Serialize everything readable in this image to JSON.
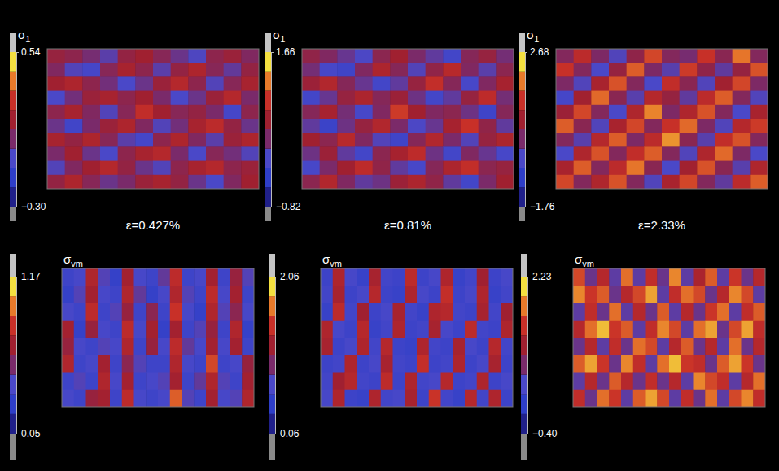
{
  "chart_data": [
    {
      "type": "heatmap",
      "title": "σ1",
      "xlabel": "ε=0.427%",
      "tick_labels": false,
      "colorbar": {
        "range": [
          -0.3,
          0.54
        ],
        "ticks": [
          {
            "value": -0.3,
            "label": "−0.30"
          },
          0.54
        ]
      },
      "cells": [
        [
          0.15,
          0.12,
          0.05,
          -0.02,
          0.14,
          0.18,
          0.1,
          0.02,
          -0.05,
          0.12,
          0.16,
          0.08
        ],
        [
          0.08,
          -0.04,
          -0.08,
          0.1,
          0.2,
          0.12,
          -0.02,
          0.14,
          0.22,
          0.1,
          0.0,
          0.14
        ],
        [
          0.18,
          0.22,
          0.12,
          0.04,
          -0.06,
          0.02,
          0.16,
          0.24,
          0.12,
          -0.04,
          0.1,
          0.2
        ],
        [
          -0.06,
          0.04,
          0.16,
          0.2,
          0.12,
          0.18,
          0.06,
          -0.06,
          0.02,
          0.16,
          0.24,
          0.06
        ],
        [
          0.12,
          0.2,
          0.08,
          -0.04,
          0.1,
          0.28,
          0.18,
          0.1,
          0.14,
          0.06,
          -0.08,
          0.12
        ],
        [
          0.02,
          -0.1,
          0.06,
          0.16,
          0.22,
          0.08,
          -0.04,
          0.04,
          0.2,
          0.26,
          0.14,
          0.02
        ],
        [
          0.2,
          0.14,
          0.22,
          0.1,
          -0.02,
          -0.08,
          0.12,
          0.22,
          0.08,
          -0.02,
          0.16,
          0.22
        ],
        [
          0.06,
          0.18,
          0.02,
          -0.06,
          0.12,
          0.2,
          0.24,
          0.06,
          -0.06,
          0.1,
          0.04,
          -0.04
        ],
        [
          -0.04,
          0.08,
          0.18,
          0.24,
          0.14,
          0.02,
          -0.04,
          0.12,
          0.2,
          0.24,
          0.12,
          0.16
        ],
        [
          0.14,
          0.22,
          0.1,
          0.02,
          0.06,
          0.16,
          0.2,
          0.14,
          0.02,
          -0.06,
          0.08,
          0.18
        ]
      ]
    },
    {
      "type": "heatmap",
      "title": "σ1",
      "xlabel": "ε=0.81%",
      "tick_labels": false,
      "colorbar": {
        "range": [
          -0.82,
          1.66
        ],
        "ticks": [
          {
            "value": -0.82,
            "label": "−0.82"
          },
          1.66
        ]
      },
      "cells": [
        [
          0.45,
          0.3,
          0.1,
          -0.1,
          0.4,
          0.6,
          0.25,
          0.05,
          -0.2,
          0.35,
          0.5,
          0.2
        ],
        [
          0.2,
          -0.15,
          -0.25,
          0.3,
          0.7,
          0.35,
          -0.05,
          0.45,
          0.8,
          0.3,
          0.0,
          0.4
        ],
        [
          0.55,
          0.75,
          0.35,
          0.1,
          -0.2,
          0.05,
          0.5,
          0.9,
          0.35,
          -0.15,
          0.3,
          0.65
        ],
        [
          -0.2,
          0.1,
          0.5,
          0.7,
          0.35,
          0.55,
          0.15,
          -0.2,
          0.05,
          0.5,
          0.85,
          0.2
        ],
        [
          0.35,
          0.65,
          0.2,
          -0.15,
          0.3,
          1.0,
          0.6,
          0.3,
          0.4,
          0.15,
          -0.25,
          0.35
        ],
        [
          0.05,
          -0.3,
          0.15,
          0.5,
          0.75,
          0.25,
          -0.1,
          0.1,
          0.65,
          0.95,
          0.45,
          0.05
        ],
        [
          0.6,
          0.4,
          0.8,
          0.3,
          -0.05,
          -0.25,
          0.35,
          0.75,
          0.25,
          -0.05,
          0.5,
          0.7
        ],
        [
          0.15,
          0.55,
          0.05,
          -0.2,
          0.4,
          0.65,
          0.85,
          0.15,
          -0.2,
          0.3,
          0.1,
          -0.15
        ],
        [
          -0.15,
          0.25,
          0.6,
          0.85,
          0.45,
          0.05,
          -0.15,
          0.35,
          0.7,
          0.9,
          0.4,
          0.5
        ],
        [
          0.4,
          0.75,
          0.3,
          0.05,
          0.15,
          0.55,
          0.7,
          0.45,
          0.05,
          -0.2,
          0.25,
          0.6
        ]
      ]
    },
    {
      "type": "heatmap",
      "title": "σ1",
      "xlabel": "ε=2.33%",
      "tick_labels": false,
      "colorbar": {
        "range": [
          -1.76,
          2.68
        ],
        "ticks": [
          {
            "value": -1.76,
            "label": "−1.76"
          },
          2.68
        ]
      },
      "cells": [
        [
          0.3,
          1.2,
          0.2,
          -0.4,
          0.5,
          1.6,
          0.3,
          0.1,
          1.4,
          0.4,
          2.0,
          0.3
        ],
        [
          1.4,
          0.3,
          -0.5,
          0.6,
          1.8,
          0.2,
          -0.3,
          1.5,
          0.5,
          -0.2,
          0.6,
          1.7
        ],
        [
          0.2,
          -0.4,
          0.9,
          1.7,
          0.3,
          -0.5,
          1.3,
          0.4,
          -0.4,
          0.8,
          1.6,
          0.2
        ],
        [
          -0.6,
          0.8,
          1.9,
          0.4,
          -0.3,
          1.1,
          0.6,
          -0.2,
          1.2,
          1.8,
          0.3,
          -0.4
        ],
        [
          0.7,
          1.6,
          0.3,
          -0.5,
          1.0,
          2.1,
          0.2,
          1.0,
          1.7,
          0.3,
          -0.5,
          0.9
        ],
        [
          1.8,
          0.4,
          -0.4,
          0.9,
          1.6,
          0.3,
          1.4,
          1.9,
          0.2,
          -0.4,
          1.1,
          1.5
        ],
        [
          0.3,
          -0.3,
          1.1,
          1.8,
          0.2,
          1.2,
          2.2,
          0.4,
          -0.3,
          1.3,
          1.7,
          0.3
        ],
        [
          -0.5,
          1.0,
          1.7,
          0.3,
          1.3,
          1.8,
          0.3,
          -0.4,
          1.0,
          1.9,
          0.2,
          -0.5
        ],
        [
          0.9,
          1.8,
          0.3,
          1.2,
          2.0,
          0.4,
          -0.5,
          0.8,
          1.7,
          0.4,
          -0.3,
          1.0
        ],
        [
          1.6,
          0.3,
          1.0,
          1.7,
          0.3,
          -0.4,
          0.9,
          1.6,
          0.3,
          -0.2,
          1.2,
          1.8
        ]
      ]
    },
    {
      "type": "heatmap",
      "title": "σvm",
      "tick_labels": false,
      "colorbar": {
        "range": [
          0.05,
          1.17
        ],
        "ticks": [
          0.05,
          1.17
        ]
      },
      "cells": [
        [
          0.3,
          0.35,
          0.75,
          0.4,
          0.25,
          0.7,
          0.35,
          0.3,
          0.45,
          0.8,
          0.3,
          0.35,
          0.7,
          0.3,
          0.65,
          0.4
        ],
        [
          0.25,
          0.4,
          0.7,
          0.35,
          0.3,
          0.75,
          0.45,
          0.25,
          0.35,
          0.75,
          0.4,
          0.3,
          0.8,
          0.35,
          0.7,
          0.3
        ],
        [
          0.35,
          0.3,
          0.8,
          0.3,
          0.4,
          0.65,
          0.3,
          0.6,
          0.3,
          0.85,
          0.35,
          0.25,
          0.75,
          0.4,
          0.6,
          0.35
        ],
        [
          0.7,
          0.25,
          0.65,
          0.35,
          0.3,
          0.8,
          0.35,
          0.7,
          0.25,
          0.7,
          0.3,
          0.4,
          0.65,
          0.3,
          0.75,
          0.25
        ],
        [
          0.65,
          0.35,
          0.3,
          0.4,
          0.35,
          0.75,
          0.3,
          0.65,
          0.35,
          0.8,
          0.45,
          0.35,
          0.7,
          0.35,
          0.7,
          0.3
        ],
        [
          0.75,
          0.3,
          0.35,
          0.7,
          0.3,
          0.6,
          0.4,
          0.3,
          0.3,
          0.75,
          0.35,
          0.3,
          0.9,
          0.3,
          0.35,
          0.65
        ],
        [
          0.3,
          0.4,
          0.3,
          0.75,
          0.35,
          0.7,
          0.3,
          0.35,
          0.4,
          0.7,
          0.3,
          0.45,
          0.75,
          0.4,
          0.3,
          0.7
        ],
        [
          0.35,
          0.3,
          0.65,
          0.7,
          0.3,
          0.8,
          0.35,
          0.3,
          0.35,
          0.95,
          0.4,
          0.3,
          0.7,
          0.35,
          0.4,
          0.75
        ]
      ]
    },
    {
      "type": "heatmap",
      "title": "σvm",
      "tick_labels": false,
      "colorbar": {
        "range": [
          0.06,
          2.06
        ],
        "ticks": [
          0.06,
          2.06
        ]
      },
      "cells": [
        [
          0.5,
          1.3,
          0.6,
          0.45,
          1.25,
          0.55,
          0.5,
          1.4,
          0.5,
          0.6,
          1.3,
          0.45,
          0.55,
          1.2,
          0.5,
          0.6
        ],
        [
          0.55,
          1.25,
          0.5,
          0.6,
          1.35,
          0.5,
          0.45,
          1.3,
          0.6,
          0.5,
          1.45,
          0.5,
          0.6,
          1.3,
          0.45,
          0.55
        ],
        [
          0.45,
          1.4,
          0.55,
          1.2,
          0.5,
          0.6,
          1.25,
          0.55,
          0.45,
          1.3,
          1.35,
          0.55,
          0.5,
          1.25,
          0.55,
          1.2
        ],
        [
          1.3,
          0.6,
          0.5,
          1.35,
          0.45,
          0.55,
          1.3,
          0.5,
          0.55,
          1.25,
          0.6,
          0.5,
          1.4,
          0.55,
          0.5,
          1.3
        ],
        [
          1.25,
          0.5,
          0.6,
          1.3,
          0.55,
          1.35,
          0.5,
          0.45,
          1.3,
          0.55,
          0.5,
          1.25,
          0.6,
          0.5,
          1.35,
          0.55
        ],
        [
          0.5,
          0.55,
          1.3,
          0.5,
          0.6,
          1.25,
          0.55,
          0.5,
          1.45,
          0.5,
          0.55,
          1.3,
          0.5,
          0.6,
          1.25,
          0.5
        ],
        [
          0.55,
          1.2,
          1.35,
          0.55,
          0.5,
          1.4,
          0.5,
          1.3,
          0.55,
          0.6,
          1.35,
          0.5,
          0.55,
          1.3,
          0.5,
          0.6
        ],
        [
          0.6,
          1.3,
          0.5,
          0.45,
          1.3,
          0.55,
          0.6,
          1.25,
          0.5,
          1.5,
          0.55,
          0.45,
          1.35,
          0.55,
          1.3,
          0.5
        ]
      ]
    },
    {
      "type": "heatmap",
      "title": "σvm",
      "tick_labels": false,
      "colorbar": {
        "range": [
          -0.4,
          2.23
        ],
        "ticks": [
          {
            "value": -0.4,
            "label": "−0.40"
          },
          2.23
        ]
      },
      "cells": [
        [
          1.6,
          0.6,
          1.3,
          0.5,
          1.8,
          0.5,
          1.4,
          0.6,
          1.9,
          0.5,
          1.2,
          1.7,
          0.5,
          1.5,
          0.6,
          1.3
        ],
        [
          1.9,
          1.5,
          1.7,
          0.6,
          1.3,
          1.6,
          2.0,
          0.5,
          1.4,
          1.8,
          1.6,
          0.6,
          1.3,
          1.9,
          1.6,
          0.5
        ],
        [
          0.5,
          1.4,
          0.6,
          1.8,
          0.5,
          1.3,
          0.6,
          1.7,
          0.5,
          1.3,
          0.6,
          1.5,
          1.8,
          0.5,
          1.4,
          1.7
        ],
        [
          1.3,
          1.8,
          2.1,
          1.5,
          1.7,
          0.5,
          1.4,
          1.9,
          1.6,
          0.5,
          1.8,
          2.0,
          0.6,
          1.6,
          2.0,
          1.4
        ],
        [
          0.6,
          1.3,
          0.5,
          1.4,
          0.6,
          1.8,
          1.6,
          0.5,
          1.3,
          1.7,
          0.6,
          1.3,
          0.5,
          1.8,
          0.6,
          1.3
        ],
        [
          1.7,
          2.0,
          1.5,
          0.6,
          1.9,
          1.4,
          0.5,
          1.8,
          2.1,
          1.5,
          1.4,
          0.6,
          1.7,
          2.0,
          1.5,
          0.6
        ],
        [
          0.5,
          1.3,
          0.6,
          1.7,
          1.3,
          0.6,
          1.4,
          0.6,
          1.3,
          0.5,
          1.9,
          1.6,
          1.4,
          0.5,
          1.3,
          1.8
        ],
        [
          1.4,
          0.6,
          1.8,
          1.5,
          0.5,
          1.7,
          2.0,
          1.6,
          0.5,
          1.4,
          0.6,
          1.8,
          0.5,
          1.6,
          1.9,
          1.4
        ]
      ]
    }
  ]
}
